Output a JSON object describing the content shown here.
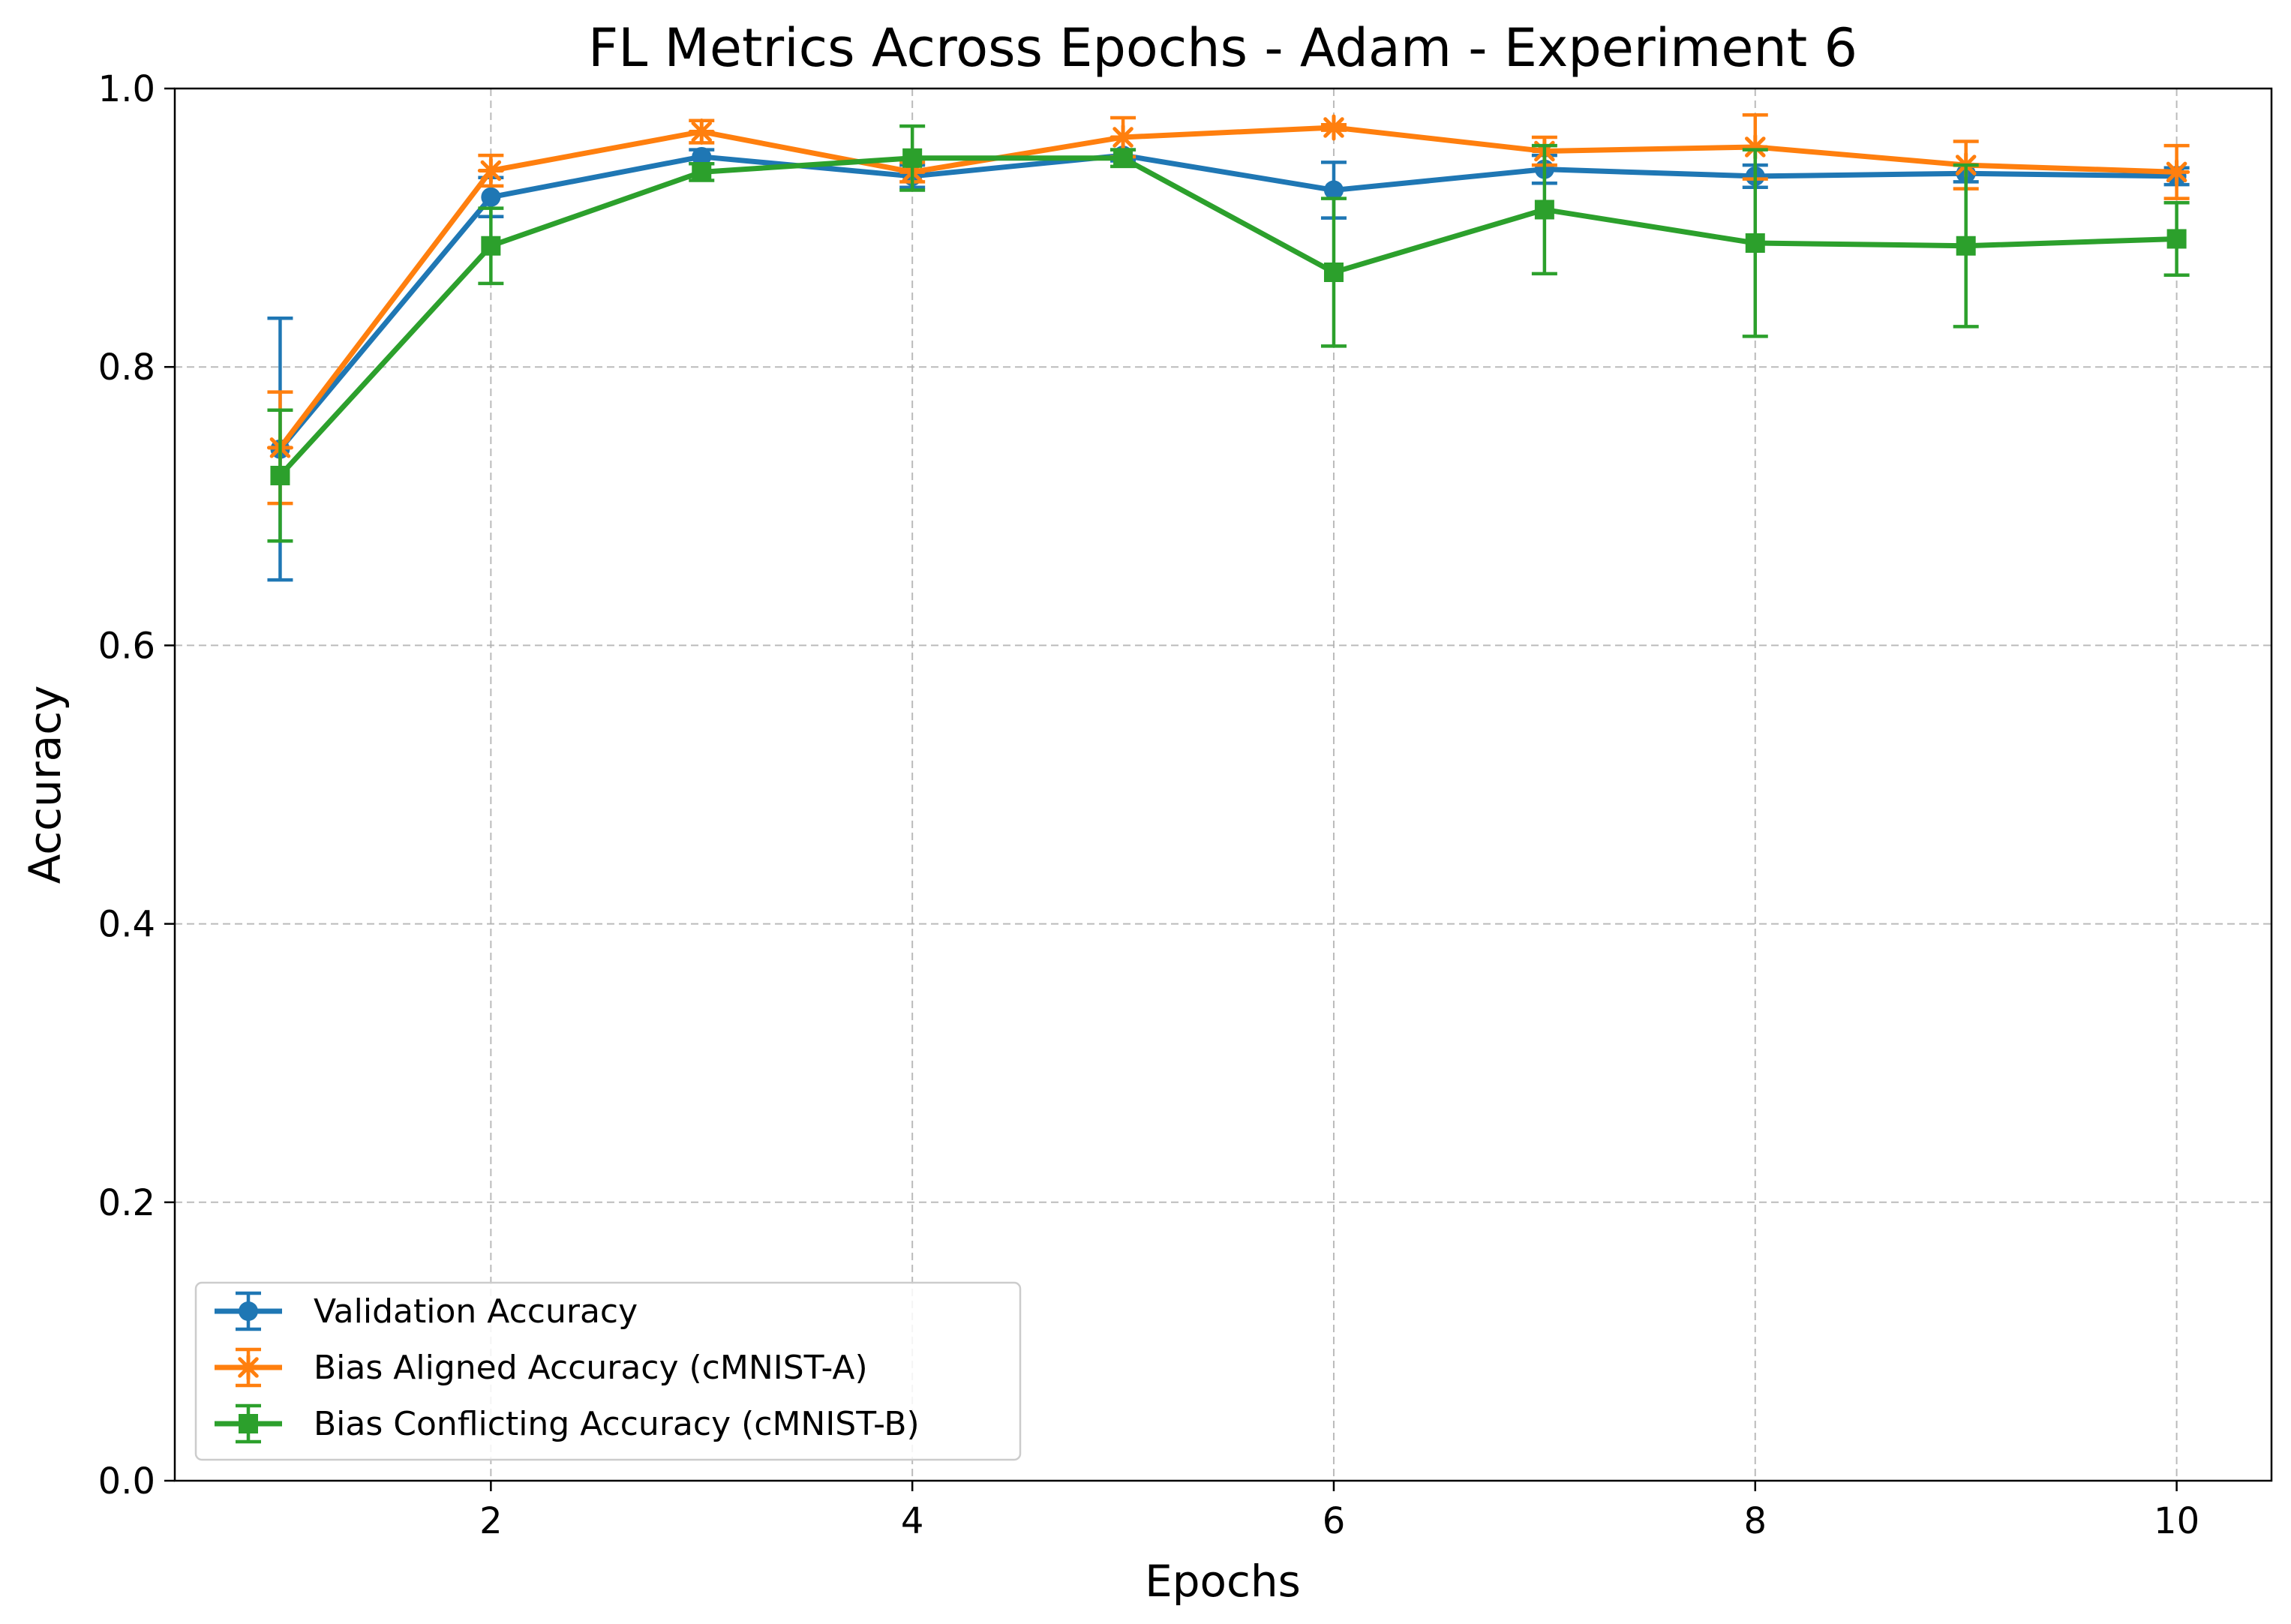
{
  "chart_data": {
    "type": "line",
    "title": "FL Metrics Across Epochs - Adam - Experiment 6",
    "xlabel": "Epochs",
    "ylabel": "Accuracy",
    "xlim": [
      0.5,
      10.45
    ],
    "ylim": [
      0.0,
      1.0
    ],
    "xticks": [
      2,
      4,
      6,
      8,
      10
    ],
    "xtick_labels": [
      "2",
      "4",
      "6",
      "8",
      "10"
    ],
    "yticks": [
      0.0,
      0.2,
      0.4,
      0.6,
      0.8,
      1.0
    ],
    "ytick_labels": [
      "0.0",
      "0.2",
      "0.4",
      "0.6",
      "0.8",
      "1.0"
    ],
    "grid": true,
    "legend_position": "lower-left",
    "x": [
      1,
      2,
      3,
      4,
      5,
      6,
      7,
      8,
      9,
      10
    ],
    "series": [
      {
        "name": "Validation Accuracy",
        "color": "#1f77b4",
        "marker": "circle",
        "values": [
          0.741,
          0.922,
          0.951,
          0.937,
          0.952,
          0.927,
          0.942,
          0.937,
          0.939,
          0.937
        ],
        "errors": [
          0.094,
          0.014,
          0.005,
          0.008,
          0.004,
          0.02,
          0.01,
          0.008,
          0.006,
          0.006
        ]
      },
      {
        "name": "Bias Aligned Accuracy (cMNIST-A)",
        "color": "#ff7f0e",
        "marker": "x-star",
        "values": [
          0.742,
          0.941,
          0.969,
          0.94,
          0.965,
          0.972,
          0.955,
          0.958,
          0.945,
          0.94
        ],
        "errors": [
          0.04,
          0.011,
          0.008,
          0.007,
          0.014,
          0.002,
          0.01,
          0.023,
          0.017,
          0.019
        ]
      },
      {
        "name": "Bias Conflicting Accuracy (cMNIST-B)",
        "color": "#2ca02c",
        "marker": "square",
        "values": [
          0.722,
          0.887,
          0.94,
          0.95,
          0.95,
          0.868,
          0.913,
          0.889,
          0.887,
          0.892
        ],
        "errors": [
          0.047,
          0.027,
          0.006,
          0.023,
          0.006,
          0.053,
          0.046,
          0.067,
          0.058,
          0.026
        ]
      }
    ]
  }
}
